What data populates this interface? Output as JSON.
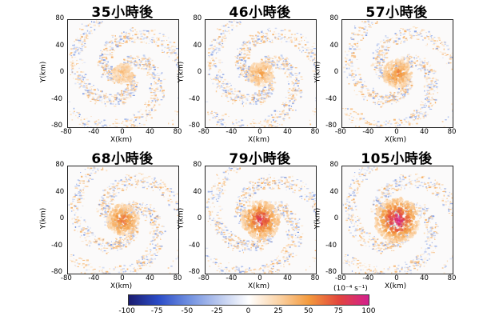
{
  "chart_data": [
    {
      "type": "heatmap",
      "title": "35小時後",
      "xlabel": "X(km)",
      "ylabel": "Y(km)",
      "xticks": [
        "-80",
        "-40",
        "0",
        "40",
        "80"
      ],
      "yticks": [
        "80",
        "40",
        "0",
        "-40",
        "-80"
      ],
      "xlim": [
        -80,
        80
      ],
      "ylim": [
        -80,
        80
      ],
      "core_intensity": 0.15
    },
    {
      "type": "heatmap",
      "title": "46小時後",
      "xlabel": "X(km)",
      "ylabel": "Y(km)",
      "xticks": [
        "-80",
        "-40",
        "0",
        "40",
        "80"
      ],
      "yticks": [
        "80",
        "40",
        "0",
        "-40",
        "-80"
      ],
      "xlim": [
        -80,
        80
      ],
      "ylim": [
        -80,
        80
      ],
      "core_intensity": 0.3
    },
    {
      "type": "heatmap",
      "title": "57小時後",
      "xlabel": "X(km)",
      "ylabel": "Y(km)",
      "xticks": [
        "-80",
        "-40",
        "0",
        "40",
        "80"
      ],
      "yticks": [
        "80",
        "40",
        "0",
        "-40",
        "-80"
      ],
      "xlim": [
        -80,
        80
      ],
      "ylim": [
        -80,
        80
      ],
      "core_intensity": 0.45
    },
    {
      "type": "heatmap",
      "title": "68小時後",
      "xlabel": "X(km)",
      "ylabel": "Y(km)",
      "xticks": [
        "-80",
        "-40",
        "0",
        "40",
        "80"
      ],
      "yticks": [
        "80",
        "40",
        "0",
        "-40",
        "-80"
      ],
      "xlim": [
        -80,
        80
      ],
      "ylim": [
        -80,
        80
      ],
      "core_intensity": 0.55
    },
    {
      "type": "heatmap",
      "title": "79小時後",
      "xlabel": "X(km)",
      "ylabel": "Y(km)",
      "xticks": [
        "-80",
        "-40",
        "0",
        "40",
        "80"
      ],
      "yticks": [
        "80",
        "40",
        "0",
        "-40",
        "-80"
      ],
      "xlim": [
        -80,
        80
      ],
      "ylim": [
        -80,
        80
      ],
      "core_intensity": 0.8
    },
    {
      "type": "heatmap",
      "title": "105小時後",
      "xlabel": "X(km)",
      "ylabel": "Y(km)",
      "xticks": [
        "-80",
        "-40",
        "0",
        "40",
        "80"
      ],
      "yticks": [
        "80",
        "40",
        "0",
        "-40",
        "-80"
      ],
      "xlim": [
        -80,
        80
      ],
      "ylim": [
        -80,
        80
      ],
      "core_intensity": 1.0
    }
  ],
  "colorbar": {
    "ticks": [
      "-100",
      "-75",
      "-50",
      "-25",
      "0",
      "25",
      "50",
      "75",
      "100"
    ],
    "range": [
      -100,
      100
    ],
    "unit": "(10⁻⁴ s⁻¹)",
    "colors": [
      "#1a1b6e",
      "#2b4cc7",
      "#6f8fe0",
      "#b9c8ee",
      "#ffffff",
      "#fbd3a6",
      "#f39a3d",
      "#e2453c",
      "#d21f8f"
    ]
  }
}
